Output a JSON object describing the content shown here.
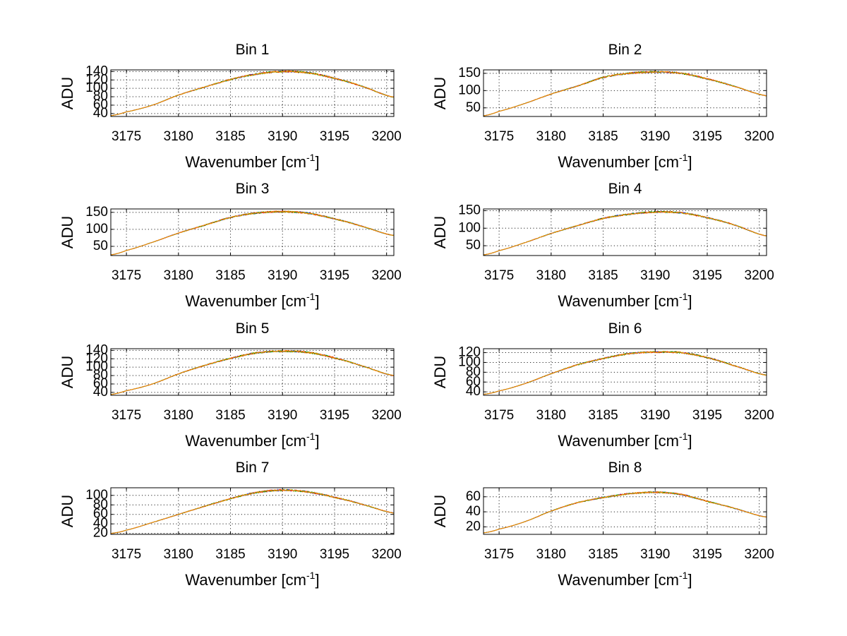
{
  "figure": {
    "background": "#ffffff"
  },
  "chart_data": [
    {
      "type": "line",
      "title": "Bin 1",
      "xlabel": "Wavenumber [cm",
      "xlabel_sup": "-1",
      "xlabel_end": "]",
      "ylabel": "ADU",
      "xlim": [
        3173.5,
        3200.7
      ],
      "ylim": [
        33,
        144
      ],
      "xticks": [
        3175,
        3180,
        3185,
        3190,
        3195,
        3200
      ],
      "yticks": [
        40,
        60,
        80,
        100,
        120,
        140
      ],
      "ytick_labels": [
        "40",
        "60",
        "80",
        "100",
        "120",
        "140"
      ],
      "x": [
        3173.5,
        3175,
        3177.5,
        3180,
        3182.5,
        3185,
        3187.5,
        3190,
        3192.5,
        3195,
        3197.5,
        3200.7
      ],
      "y": [
        35,
        44,
        60,
        84,
        103,
        121,
        134,
        140,
        137,
        124,
        106,
        79
      ],
      "series": [
        {
          "name": "series-1",
          "color": "#0000ff"
        },
        {
          "name": "series-2",
          "color": "#ff0000"
        },
        {
          "name": "series-3",
          "color": "#00a000"
        },
        {
          "name": "series-4",
          "color": "#ff8c00"
        }
      ]
    },
    {
      "type": "line",
      "title": "Bin 2",
      "xlabel": "Wavenumber [cm",
      "xlabel_sup": "-1",
      "xlabel_end": "]",
      "ylabel": "ADU",
      "xlim": [
        3173.5,
        3200.7
      ],
      "ylim": [
        25,
        160
      ],
      "xticks": [
        3175,
        3180,
        3185,
        3190,
        3195,
        3200
      ],
      "yticks": [
        50,
        100,
        150
      ],
      "ytick_labels": [
        "50",
        "100",
        "150"
      ],
      "x": [
        3173.5,
        3175,
        3177.5,
        3180,
        3182.5,
        3185,
        3187.5,
        3190,
        3192.5,
        3195,
        3197.5,
        3200.7
      ],
      "y": [
        27,
        40,
        63,
        90,
        113,
        138,
        150,
        154,
        150,
        134,
        113,
        85
      ],
      "series": [
        {
          "name": "series-1",
          "color": "#0000ff"
        },
        {
          "name": "series-2",
          "color": "#ff0000"
        },
        {
          "name": "series-3",
          "color": "#00a000"
        },
        {
          "name": "series-4",
          "color": "#ff8c00"
        }
      ]
    },
    {
      "type": "line",
      "title": "Bin 3",
      "xlabel": "Wavenumber [cm",
      "xlabel_sup": "-1",
      "xlabel_end": "]",
      "ylabel": "ADU",
      "xlim": [
        3173.5,
        3200.7
      ],
      "ylim": [
        23,
        160
      ],
      "xticks": [
        3175,
        3180,
        3185,
        3190,
        3195,
        3200
      ],
      "yticks": [
        50,
        100,
        150
      ],
      "ytick_labels": [
        "50",
        "100",
        "150"
      ],
      "x": [
        3173.5,
        3175,
        3177.5,
        3180,
        3182.5,
        3185,
        3187.5,
        3190,
        3192.5,
        3195,
        3197.5,
        3200.7
      ],
      "y": [
        25,
        38,
        62,
        89,
        112,
        135,
        148,
        152,
        147,
        131,
        110,
        82
      ],
      "series": [
        {
          "name": "series-1",
          "color": "#0000ff"
        },
        {
          "name": "series-2",
          "color": "#ff0000"
        },
        {
          "name": "series-3",
          "color": "#00a000"
        },
        {
          "name": "series-4",
          "color": "#ff8c00"
        }
      ]
    },
    {
      "type": "line",
      "title": "Bin 4",
      "xlabel": "Wavenumber [cm",
      "xlabel_sup": "-1",
      "xlabel_end": "]",
      "ylabel": "ADU",
      "xlim": [
        3173.5,
        3200.7
      ],
      "ylim": [
        22,
        155
      ],
      "xticks": [
        3175,
        3180,
        3185,
        3190,
        3195,
        3200
      ],
      "yticks": [
        50,
        100,
        150
      ],
      "ytick_labels": [
        "50",
        "100",
        "150"
      ],
      "x": [
        3173.5,
        3175,
        3177.5,
        3180,
        3182.5,
        3185,
        3187.5,
        3190,
        3192.5,
        3195,
        3197.5,
        3200.7
      ],
      "y": [
        24,
        36,
        59,
        85,
        107,
        128,
        140,
        146,
        144,
        130,
        110,
        78
      ],
      "series": [
        {
          "name": "series-1",
          "color": "#0000ff"
        },
        {
          "name": "series-2",
          "color": "#ff0000"
        },
        {
          "name": "series-3",
          "color": "#00a000"
        },
        {
          "name": "series-4",
          "color": "#ff8c00"
        }
      ]
    },
    {
      "type": "line",
      "title": "Bin 5",
      "xlabel": "Wavenumber [cm",
      "xlabel_sup": "-1",
      "xlabel_end": "]",
      "ylabel": "ADU",
      "xlim": [
        3173.5,
        3200.7
      ],
      "ylim": [
        33,
        144
      ],
      "xticks": [
        3175,
        3180,
        3185,
        3190,
        3195,
        3200
      ],
      "yticks": [
        40,
        60,
        80,
        100,
        120,
        140
      ],
      "ytick_labels": [
        "40",
        "60",
        "80",
        "100",
        "120",
        "140"
      ],
      "x": [
        3173.5,
        3175,
        3177.5,
        3180,
        3182.5,
        3185,
        3187.5,
        3190,
        3192.5,
        3195,
        3197.5,
        3200.7
      ],
      "y": [
        35,
        44,
        60,
        84,
        104,
        121,
        134,
        138,
        135,
        122,
        104,
        80
      ],
      "series": [
        {
          "name": "series-1",
          "color": "#0000ff"
        },
        {
          "name": "series-2",
          "color": "#ff0000"
        },
        {
          "name": "series-3",
          "color": "#00a000"
        },
        {
          "name": "series-4",
          "color": "#ff8c00"
        }
      ]
    },
    {
      "type": "line",
      "title": "Bin 6",
      "xlabel": "Wavenumber [cm",
      "xlabel_sup": "-1",
      "xlabel_end": "]",
      "ylabel": "ADU",
      "xlim": [
        3173.5,
        3200.7
      ],
      "ylim": [
        33,
        128
      ],
      "xticks": [
        3175,
        3180,
        3185,
        3190,
        3195,
        3200
      ],
      "yticks": [
        40,
        60,
        80,
        100,
        120
      ],
      "ytick_labels": [
        "40",
        "60",
        "80",
        "100",
        "120"
      ],
      "x": [
        3173.5,
        3175,
        3177.5,
        3180,
        3182.5,
        3185,
        3187.5,
        3190,
        3192.5,
        3195,
        3197.5,
        3200.7
      ],
      "y": [
        35,
        42,
        57,
        77,
        95,
        108,
        118,
        121,
        120,
        110,
        94,
        74
      ],
      "series": [
        {
          "name": "series-1",
          "color": "#0000ff"
        },
        {
          "name": "series-2",
          "color": "#ff0000"
        },
        {
          "name": "series-3",
          "color": "#00a000"
        },
        {
          "name": "series-4",
          "color": "#ff8c00"
        }
      ]
    },
    {
      "type": "line",
      "title": "Bin 7",
      "xlabel": "Wavenumber [cm",
      "xlabel_sup": "-1",
      "xlabel_end": "]",
      "ylabel": "ADU",
      "xlim": [
        3173.5,
        3200.7
      ],
      "ylim": [
        18,
        116
      ],
      "xticks": [
        3175,
        3180,
        3185,
        3190,
        3195,
        3200
      ],
      "yticks": [
        20,
        40,
        60,
        80,
        100
      ],
      "ytick_labels": [
        "20",
        "40",
        "60",
        "80",
        "100"
      ],
      "x": [
        3173.5,
        3175,
        3177.5,
        3180,
        3182.5,
        3185,
        3187.5,
        3190,
        3192.5,
        3195,
        3197.5,
        3200.7
      ],
      "y": [
        20,
        27,
        43,
        60,
        77,
        93,
        106,
        111,
        107,
        96,
        82,
        63
      ],
      "series": [
        {
          "name": "series-1",
          "color": "#0000ff"
        },
        {
          "name": "series-2",
          "color": "#ff0000"
        },
        {
          "name": "series-3",
          "color": "#00a000"
        },
        {
          "name": "series-4",
          "color": "#ff8c00"
        }
      ]
    },
    {
      "type": "line",
      "title": "Bin 8",
      "xlabel": "Wavenumber [cm",
      "xlabel_sup": "-1",
      "xlabel_end": "]",
      "ylabel": "ADU",
      "xlim": [
        3173.5,
        3200.7
      ],
      "ylim": [
        10,
        72
      ],
      "xticks": [
        3175,
        3180,
        3185,
        3190,
        3195,
        3200
      ],
      "yticks": [
        20,
        40,
        60
      ],
      "ytick_labels": [
        "20",
        "40",
        "60"
      ],
      "x": [
        3173.5,
        3175,
        3177.5,
        3180,
        3182.5,
        3185,
        3187.5,
        3190,
        3192.5,
        3195,
        3197.5,
        3200.7
      ],
      "y": [
        12,
        17,
        27,
        41,
        52,
        59,
        64,
        66,
        63,
        54,
        45,
        33
      ],
      "series": [
        {
          "name": "series-1",
          "color": "#0000ff"
        },
        {
          "name": "series-2",
          "color": "#ff0000"
        },
        {
          "name": "series-3",
          "color": "#00a000"
        },
        {
          "name": "series-4",
          "color": "#ff8c00"
        }
      ]
    }
  ]
}
